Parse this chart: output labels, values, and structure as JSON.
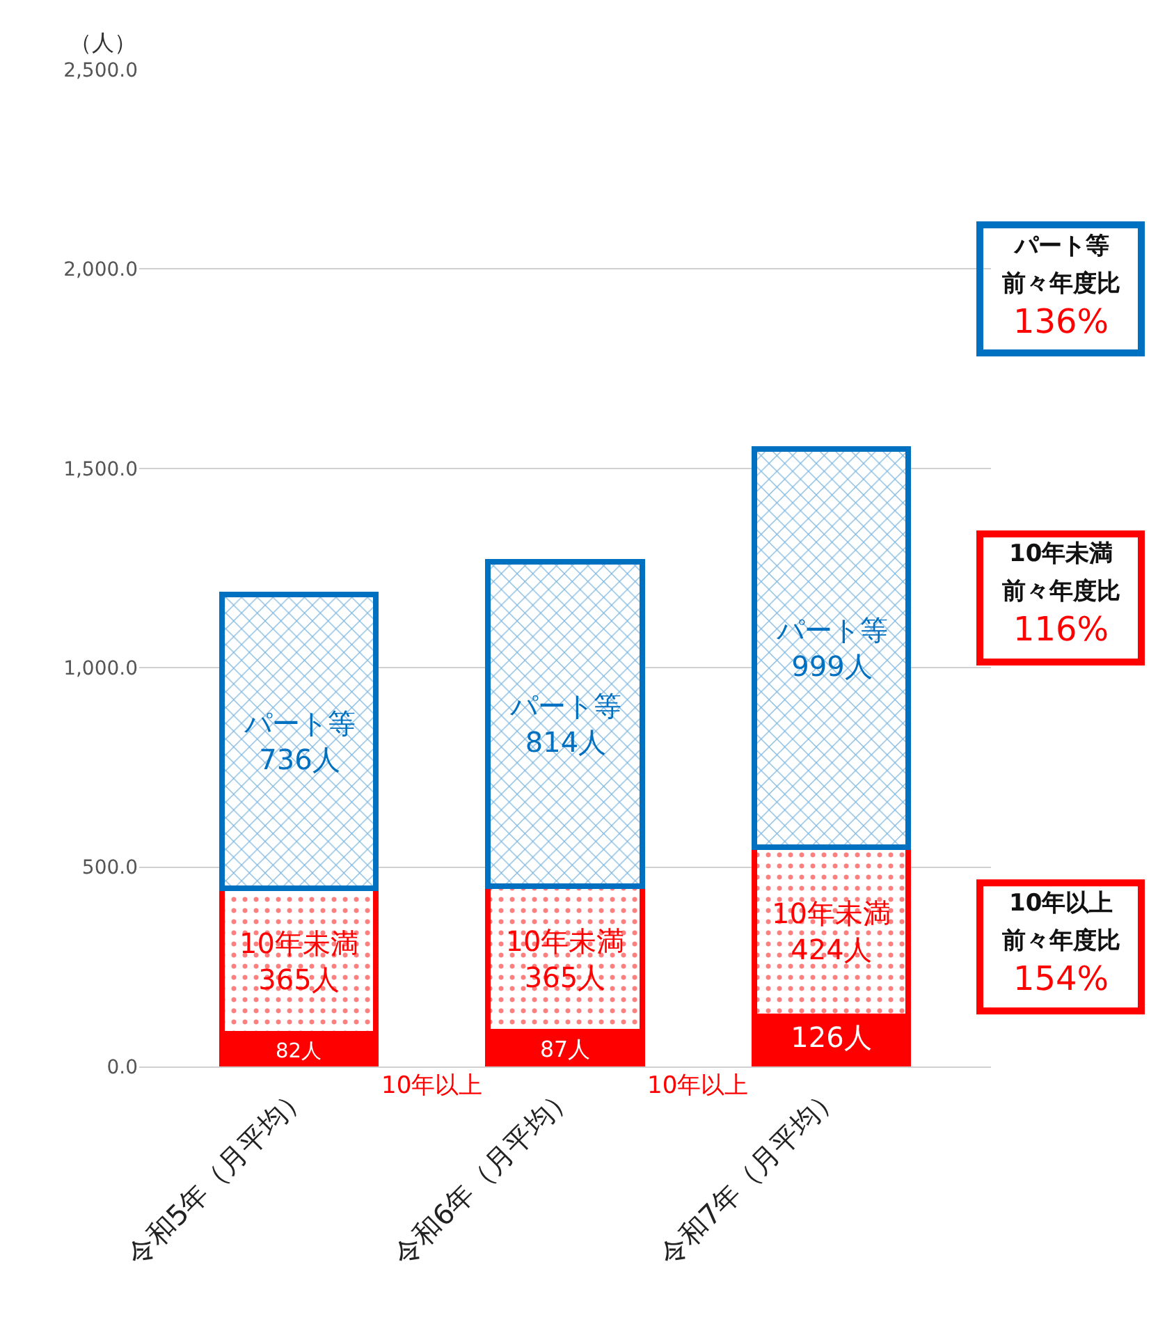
{
  "chart_data": {
    "type": "bar",
    "stacked": true,
    "ylabel": "（人）",
    "categories": [
      "令和5年（月平均）",
      "令和6年（月平均）",
      "令和7年（月平均）"
    ],
    "series": [
      {
        "color": "#ff0000",
        "values": [
          82,
          87,
          126
        ],
        "value_labels": [
          "82人",
          "87人",
          "126人"
        ]
      },
      {
        "color": "#ff0000",
        "values": [
          365,
          365,
          424
        ],
        "value_labels": [
          "10年未満\n365人",
          "10年未満\n365人",
          "10年未満\n424人"
        ]
      },
      {
        "color": "#0070c0",
        "values": [
          736,
          814,
          999
        ],
        "value_labels": [
          "パート等\n736人",
          "パート等\n814人",
          "パート等\n999人"
        ]
      }
    ],
    "ylim": [
      0,
      2500
    ],
    "yticks": [
      {
        "value": 0,
        "label": "0.0"
      },
      {
        "value": 500,
        "label": "500.0"
      },
      {
        "value": 1000,
        "label": "1,000.0"
      },
      {
        "value": 1500,
        "label": "1,500.0"
      },
      {
        "value": 2000,
        "label": "2,000.0"
      },
      {
        "value": 2500,
        "label": "2,500.0"
      }
    ],
    "grid": "y",
    "annotations": [
      "パート等",
      "前々年度比",
      "136%",
      "10年未満",
      "前々年度比",
      "116%",
      "10年以上",
      "前々年度比",
      "154%",
      "10年以上",
      "10年以上"
    ]
  }
}
